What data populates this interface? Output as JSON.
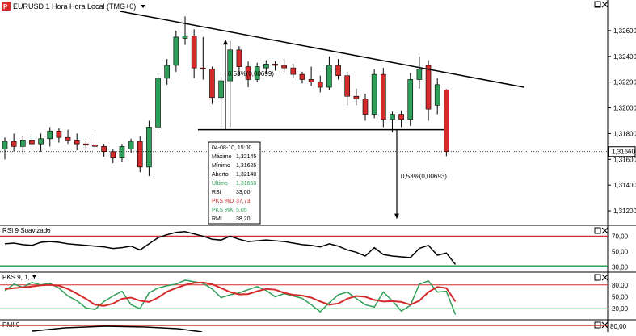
{
  "colors": {
    "bull": "#2e9e58",
    "bear": "#d42a2a",
    "line_black": "#000000",
    "level_red": "#d42a2a",
    "level_green": "#2e9e58",
    "pks_d": "#d42a2a",
    "pks_k": "#2e9e58",
    "tooltip_red": "#c62828",
    "tooltip_green": "#2e9e58",
    "grid": "#c8c8c8"
  },
  "main_panel": {
    "title": "EURUSD 1 Hora Hora Local (TMG+0)",
    "logo_icon": "chart-logo-icon",
    "dropdown_icon": "chevron-down-icon",
    "current_price_tag": "1,31660",
    "price_ticks": [
      "1,32600",
      "1,32400",
      "1,32200",
      "1,32000",
      "1,31800",
      "1,31600",
      "1,31400",
      "1,31200"
    ],
    "annotation_upper": "0,53%(0,00699)",
    "annotation_lower": "0,53%(0,00693)"
  },
  "tooltip": {
    "rows": [
      {
        "label": "04-08-10, 15:00",
        "value": ""
      },
      {
        "label": "Máximo",
        "value": "1,32145"
      },
      {
        "label": "Mínimo",
        "value": "1,31625"
      },
      {
        "label": "Aberto",
        "value": "1,32140"
      },
      {
        "label": "Último",
        "value": "1,31660"
      },
      {
        "label": "RSI",
        "value": "33,00"
      },
      {
        "label": "PKS %D",
        "value": "37,73"
      },
      {
        "label": "PKS %K",
        "value": "5,05"
      },
      {
        "label": "RMI",
        "value": "38,20"
      }
    ]
  },
  "rsi_panel": {
    "title": "RSI 9 Suavizado",
    "ticks": [
      "70,00",
      "50,00",
      "30,00"
    ]
  },
  "pks_panel": {
    "title": "PKS 9, 1, 3",
    "ticks": [
      "80,00",
      "50,00",
      "20,00"
    ]
  },
  "rmi_panel": {
    "title": "RMI 9",
    "ticks": [
      "80,00"
    ]
  },
  "chart_data": [
    {
      "type": "candlestick",
      "title": "EURUSD 1 Hora Hora Local (TMG+0)",
      "ylim": [
        1.311,
        1.3275
      ],
      "y_ticks": [
        1.326,
        1.324,
        1.322,
        1.32,
        1.318,
        1.316,
        1.314,
        1.312
      ],
      "grid": false,
      "candles": [
        {
          "o": 1.3168,
          "h": 1.3177,
          "l": 1.316,
          "c": 1.3174
        },
        {
          "o": 1.3174,
          "h": 1.318,
          "l": 1.3166,
          "c": 1.317
        },
        {
          "o": 1.317,
          "h": 1.3178,
          "l": 1.3164,
          "c": 1.3175
        },
        {
          "o": 1.3175,
          "h": 1.3182,
          "l": 1.3168,
          "c": 1.3172
        },
        {
          "o": 1.3172,
          "h": 1.318,
          "l": 1.3166,
          "c": 1.3176
        },
        {
          "o": 1.3176,
          "h": 1.3185,
          "l": 1.317,
          "c": 1.3182
        },
        {
          "o": 1.3182,
          "h": 1.3184,
          "l": 1.3173,
          "c": 1.3177
        },
        {
          "o": 1.3177,
          "h": 1.3183,
          "l": 1.3172,
          "c": 1.3175
        },
        {
          "o": 1.3175,
          "h": 1.318,
          "l": 1.3167,
          "c": 1.3172
        },
        {
          "o": 1.3172,
          "h": 1.3174,
          "l": 1.3165,
          "c": 1.3171
        },
        {
          "o": 1.3171,
          "h": 1.3181,
          "l": 1.3164,
          "c": 1.317
        },
        {
          "o": 1.317,
          "h": 1.3172,
          "l": 1.3162,
          "c": 1.3166
        },
        {
          "o": 1.3166,
          "h": 1.3168,
          "l": 1.3157,
          "c": 1.3161
        },
        {
          "o": 1.3161,
          "h": 1.3172,
          "l": 1.3158,
          "c": 1.317
        },
        {
          "o": 1.3168,
          "h": 1.3176,
          "l": 1.3165,
          "c": 1.3174
        },
        {
          "o": 1.3174,
          "h": 1.3178,
          "l": 1.315,
          "c": 1.3154
        },
        {
          "o": 1.3154,
          "h": 1.319,
          "l": 1.3147,
          "c": 1.3185
        },
        {
          "o": 1.3185,
          "h": 1.3227,
          "l": 1.3183,
          "c": 1.3223
        },
        {
          "o": 1.3223,
          "h": 1.3238,
          "l": 1.3218,
          "c": 1.3233
        },
        {
          "o": 1.3233,
          "h": 1.326,
          "l": 1.3228,
          "c": 1.3255
        },
        {
          "o": 1.3254,
          "h": 1.3271,
          "l": 1.3249,
          "c": 1.3256
        },
        {
          "o": 1.3256,
          "h": 1.3261,
          "l": 1.3223,
          "c": 1.3231
        },
        {
          "o": 1.3231,
          "h": 1.3255,
          "l": 1.3222,
          "c": 1.323
        },
        {
          "o": 1.323,
          "h": 1.3232,
          "l": 1.3203,
          "c": 1.3208
        },
        {
          "o": 1.3208,
          "h": 1.3224,
          "l": 1.3185,
          "c": 1.3221
        },
        {
          "o": 1.3221,
          "h": 1.3252,
          "l": 1.3185,
          "c": 1.3245
        },
        {
          "o": 1.3245,
          "h": 1.3248,
          "l": 1.3225,
          "c": 1.3232
        },
        {
          "o": 1.3232,
          "h": 1.3236,
          "l": 1.3216,
          "c": 1.3222
        },
        {
          "o": 1.3222,
          "h": 1.3235,
          "l": 1.322,
          "c": 1.3232
        },
        {
          "o": 1.3231,
          "h": 1.3237,
          "l": 1.3226,
          "c": 1.3234
        },
        {
          "o": 1.3234,
          "h": 1.3236,
          "l": 1.3229,
          "c": 1.3233
        },
        {
          "o": 1.3233,
          "h": 1.3238,
          "l": 1.3228,
          "c": 1.3231
        },
        {
          "o": 1.3231,
          "h": 1.3234,
          "l": 1.3223,
          "c": 1.3226
        },
        {
          "o": 1.3226,
          "h": 1.3228,
          "l": 1.3219,
          "c": 1.3222
        },
        {
          "o": 1.3222,
          "h": 1.3232,
          "l": 1.3217,
          "c": 1.322
        },
        {
          "o": 1.322,
          "h": 1.3225,
          "l": 1.3212,
          "c": 1.3216
        },
        {
          "o": 1.3216,
          "h": 1.324,
          "l": 1.3214,
          "c": 1.3233
        },
        {
          "o": 1.3233,
          "h": 1.3238,
          "l": 1.3222,
          "c": 1.3225
        },
        {
          "o": 1.3225,
          "h": 1.3228,
          "l": 1.3202,
          "c": 1.3209
        },
        {
          "o": 1.3209,
          "h": 1.3215,
          "l": 1.3202,
          "c": 1.3207
        },
        {
          "o": 1.3207,
          "h": 1.3211,
          "l": 1.319,
          "c": 1.3195
        },
        {
          "o": 1.3195,
          "h": 1.323,
          "l": 1.3192,
          "c": 1.3226
        },
        {
          "o": 1.3226,
          "h": 1.3231,
          "l": 1.3185,
          "c": 1.3191
        },
        {
          "o": 1.3191,
          "h": 1.3197,
          "l": 1.3181,
          "c": 1.3195
        },
        {
          "o": 1.3195,
          "h": 1.3198,
          "l": 1.3185,
          "c": 1.3191
        },
        {
          "o": 1.3191,
          "h": 1.3227,
          "l": 1.3186,
          "c": 1.3222
        },
        {
          "o": 1.3222,
          "h": 1.324,
          "l": 1.3215,
          "c": 1.323
        },
        {
          "o": 1.3233,
          "h": 1.3237,
          "l": 1.319,
          "c": 1.3199
        },
        {
          "o": 1.3202,
          "h": 1.3223,
          "l": 1.3195,
          "c": 1.3218
        },
        {
          "o": 1.3214,
          "h": 1.32145,
          "l": 1.31625,
          "c": 1.3166
        }
      ],
      "annotations": [
        {
          "type": "trendline",
          "label": "",
          "from": {
            "i": 12,
            "price": 1.3275
          },
          "to": {
            "i": 57,
            "price": 1.3216
          }
        },
        {
          "type": "horizontal_line",
          "price": 1.3183
        },
        {
          "type": "horizontal_dotted",
          "price": 1.3166
        },
        {
          "type": "vertical_measure",
          "label": "0,53%(0,00699)",
          "from": 1.3183,
          "to": 1.3253
        },
        {
          "type": "vertical_measure",
          "label": "0,53%(0,00693)",
          "from": 1.3183,
          "to": 1.3114
        }
      ]
    },
    {
      "type": "line",
      "title": "RSI 9 Suavizado",
      "ylim": [
        25,
        80
      ],
      "levels": [
        70,
        30
      ],
      "series": [
        {
          "name": "",
          "values": [
            60,
            61,
            59,
            58,
            62,
            63,
            62,
            60,
            59,
            58,
            57,
            56,
            54,
            55,
            57,
            52,
            60,
            68,
            72,
            75,
            76,
            73,
            70,
            66,
            65,
            70,
            66,
            63,
            64,
            65,
            64,
            63,
            61,
            59,
            58,
            56,
            60,
            57,
            52,
            49,
            44,
            55,
            46,
            44,
            43,
            42,
            54,
            58,
            45,
            48,
            33
          ]
        }
      ]
    },
    {
      "type": "line",
      "title": "PKS 9, 1, 3",
      "ylim": [
        0,
        100
      ],
      "levels": [
        80,
        20
      ],
      "series": [
        {
          "name": "PKS %K",
          "values": [
            65,
            82,
            74,
            86,
            80,
            84,
            72,
            52,
            40,
            22,
            18,
            38,
            52,
            64,
            30,
            20,
            60,
            72,
            78,
            82,
            92,
            88,
            84,
            70,
            48,
            55,
            60,
            68,
            76,
            66,
            50,
            58,
            52,
            46,
            30,
            12,
            35,
            55,
            62,
            46,
            30,
            24,
            62,
            40,
            14,
            28,
            82,
            90,
            62,
            64,
            5
          ]
        },
        {
          "name": "PKS %D",
          "values": [
            70,
            72,
            74,
            76,
            79,
            80,
            78,
            70,
            58,
            45,
            30,
            27,
            33,
            45,
            48,
            40,
            37,
            48,
            63,
            72,
            80,
            85,
            86,
            82,
            72,
            62,
            56,
            57,
            64,
            70,
            68,
            60,
            55,
            53,
            48,
            38,
            30,
            33,
            45,
            52,
            50,
            42,
            38,
            39,
            37,
            30,
            40,
            62,
            75,
            72,
            38
          ]
        }
      ]
    }
  ]
}
